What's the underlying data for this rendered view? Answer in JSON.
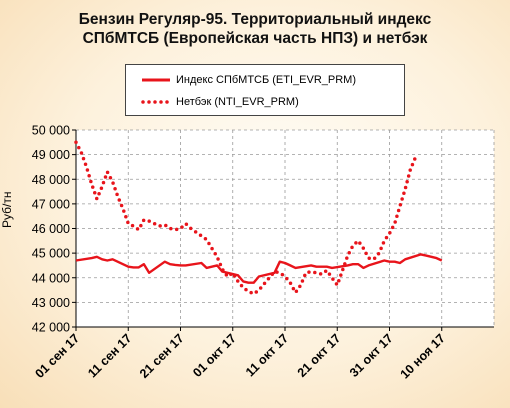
{
  "chart_data": {
    "type": "line",
    "title_lines": [
      "Бензин Регуляр-95. Территориальный индекс",
      "СПбМТСБ (Европейская часть НПЗ) и нетбэк"
    ],
    "ylabel": "Руб/тн",
    "xlabel": "",
    "x_tick_labels": [
      "01 сен 17",
      "11 сен 17",
      "21 сен 17",
      "01 окт 17",
      "11 окт 17",
      "21 окт 17",
      "31 окт 17",
      "10 ноя 17"
    ],
    "y_tick_labels": [
      "42 000",
      "43 000",
      "44 000",
      "45 000",
      "46 000",
      "47 000",
      "48 000",
      "49 000",
      "50 000"
    ],
    "ylim": [
      42000,
      50000
    ],
    "xlim": [
      "2017-09-01",
      "2017-11-20"
    ],
    "grid": true,
    "legend_position": "top",
    "series": [
      {
        "name": "Индекс СПбМТСБ  (ETI_EVR_PRM)",
        "style": "solid",
        "color": "#e8141b",
        "points": [
          [
            "2017-09-01",
            44700
          ],
          [
            "2017-09-04",
            44800
          ],
          [
            "2017-09-05",
            44850
          ],
          [
            "2017-09-06",
            44750
          ],
          [
            "2017-09-07",
            44700
          ],
          [
            "2017-09-08",
            44750
          ],
          [
            "2017-09-11",
            44450
          ],
          [
            "2017-09-12",
            44420
          ],
          [
            "2017-09-13",
            44420
          ],
          [
            "2017-09-14",
            44550
          ],
          [
            "2017-09-15",
            44200
          ],
          [
            "2017-09-18",
            44650
          ],
          [
            "2017-09-19",
            44550
          ],
          [
            "2017-09-20",
            44520
          ],
          [
            "2017-09-21",
            44500
          ],
          [
            "2017-09-22",
            44500
          ],
          [
            "2017-09-25",
            44600
          ],
          [
            "2017-09-26",
            44400
          ],
          [
            "2017-09-27",
            44450
          ],
          [
            "2017-09-28",
            44500
          ],
          [
            "2017-09-29",
            44250
          ],
          [
            "2017-10-02",
            44100
          ],
          [
            "2017-10-03",
            43850
          ],
          [
            "2017-10-04",
            43800
          ],
          [
            "2017-10-05",
            43800
          ],
          [
            "2017-10-06",
            44050
          ],
          [
            "2017-10-09",
            44200
          ],
          [
            "2017-10-10",
            44650
          ],
          [
            "2017-10-11",
            44600
          ],
          [
            "2017-10-12",
            44500
          ],
          [
            "2017-10-13",
            44400
          ],
          [
            "2017-10-16",
            44500
          ],
          [
            "2017-10-17",
            44450
          ],
          [
            "2017-10-18",
            44450
          ],
          [
            "2017-10-19",
            44450
          ],
          [
            "2017-10-20",
            44400
          ],
          [
            "2017-10-23",
            44500
          ],
          [
            "2017-10-24",
            44550
          ],
          [
            "2017-10-25",
            44550
          ],
          [
            "2017-10-26",
            44400
          ],
          [
            "2017-10-27",
            44500
          ],
          [
            "2017-10-30",
            44700
          ],
          [
            "2017-10-31",
            44650
          ],
          [
            "2017-11-01",
            44650
          ],
          [
            "2017-11-02",
            44600
          ],
          [
            "2017-11-03",
            44750
          ],
          [
            "2017-11-06",
            44950
          ],
          [
            "2017-11-07",
            44900
          ],
          [
            "2017-11-08",
            44850
          ],
          [
            "2017-11-09",
            44800
          ],
          [
            "2017-11-10",
            44700
          ]
        ]
      },
      {
        "name": "Нетбэк  (NTI_EVR_PRM)",
        "style": "dotted",
        "color": "#e8141b",
        "points": [
          [
            "2017-09-01",
            49500
          ],
          [
            "2017-09-02",
            49100
          ],
          [
            "2017-09-03",
            48500
          ],
          [
            "2017-09-04",
            47800
          ],
          [
            "2017-09-05",
            47200
          ],
          [
            "2017-09-06",
            47700
          ],
          [
            "2017-09-07",
            48300
          ],
          [
            "2017-09-08",
            47900
          ],
          [
            "2017-09-09",
            47300
          ],
          [
            "2017-09-10",
            46800
          ],
          [
            "2017-09-11",
            46200
          ],
          [
            "2017-09-12",
            46100
          ],
          [
            "2017-09-13",
            45950
          ],
          [
            "2017-09-14",
            46350
          ],
          [
            "2017-09-15",
            46300
          ],
          [
            "2017-09-16",
            46200
          ],
          [
            "2017-09-17",
            46100
          ],
          [
            "2017-09-18",
            46150
          ],
          [
            "2017-09-19",
            46000
          ],
          [
            "2017-09-20",
            45950
          ],
          [
            "2017-09-21",
            46000
          ],
          [
            "2017-09-22",
            46200
          ],
          [
            "2017-09-23",
            46000
          ],
          [
            "2017-09-24",
            45850
          ],
          [
            "2017-09-25",
            45700
          ],
          [
            "2017-09-26",
            45550
          ],
          [
            "2017-09-27",
            45200
          ],
          [
            "2017-09-28",
            44850
          ],
          [
            "2017-09-29",
            44350
          ],
          [
            "2017-09-30",
            44050
          ],
          [
            "2017-10-01",
            44200
          ],
          [
            "2017-10-02",
            43850
          ],
          [
            "2017-10-03",
            43600
          ],
          [
            "2017-10-04",
            43450
          ],
          [
            "2017-10-05",
            43350
          ],
          [
            "2017-10-06",
            43500
          ],
          [
            "2017-10-07",
            43750
          ],
          [
            "2017-10-08",
            44000
          ],
          [
            "2017-10-09",
            44250
          ],
          [
            "2017-10-10",
            44200
          ],
          [
            "2017-10-11",
            44050
          ],
          [
            "2017-10-12",
            43800
          ],
          [
            "2017-10-13",
            43400
          ],
          [
            "2017-10-14",
            43700
          ],
          [
            "2017-10-15",
            44200
          ],
          [
            "2017-10-16",
            44250
          ],
          [
            "2017-10-17",
            44200
          ],
          [
            "2017-10-18",
            44150
          ],
          [
            "2017-10-19",
            44300
          ],
          [
            "2017-10-20",
            44000
          ],
          [
            "2017-10-21",
            43700
          ],
          [
            "2017-10-22",
            44300
          ],
          [
            "2017-10-23",
            44900
          ],
          [
            "2017-10-24",
            45300
          ],
          [
            "2017-10-25",
            45500
          ],
          [
            "2017-10-26",
            45200
          ],
          [
            "2017-10-27",
            44800
          ],
          [
            "2017-10-28",
            44750
          ],
          [
            "2017-10-29",
            45000
          ],
          [
            "2017-10-30",
            45500
          ],
          [
            "2017-10-31",
            45800
          ],
          [
            "2017-11-01",
            46200
          ],
          [
            "2017-11-02",
            46900
          ],
          [
            "2017-11-03",
            47600
          ],
          [
            "2017-11-04",
            48400
          ],
          [
            "2017-11-05",
            48900
          ]
        ]
      }
    ]
  }
}
